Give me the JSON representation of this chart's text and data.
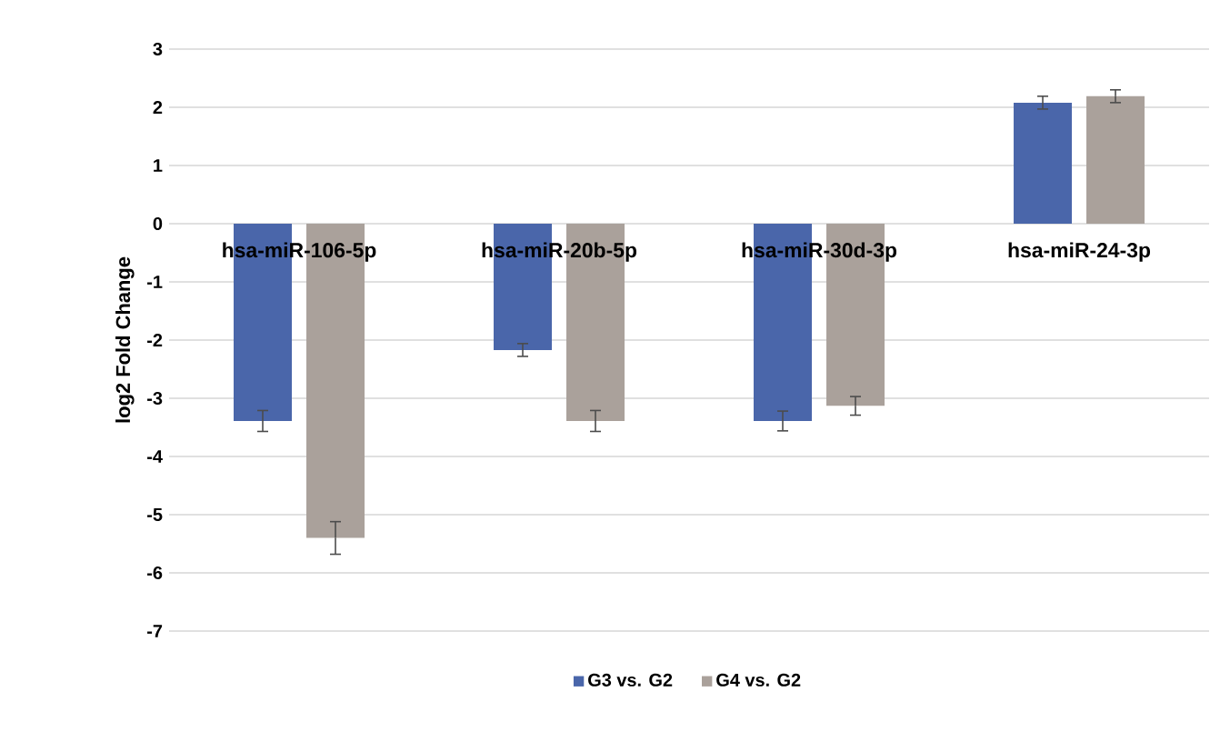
{
  "chart_data": {
    "type": "bar",
    "ylabel": "log2 Fold Change",
    "categories": [
      "hsa-miR-106-5p",
      "hsa-miR-20b-5p",
      "hsa-miR-30d-3p",
      "hsa-miR-24-3p"
    ],
    "series": [
      {
        "name": "G3 vs. G2",
        "color": "#4a66aa",
        "values": [
          -3.39,
          -2.17,
          -3.39,
          2.08
        ],
        "errors": [
          0.18,
          0.11,
          0.17,
          0.11
        ]
      },
      {
        "name": "G4 vs. G2",
        "color": "#aaa19b",
        "values": [
          -5.4,
          -3.39,
          -3.13,
          2.19
        ],
        "errors": [
          0.28,
          0.18,
          0.16,
          0.11
        ]
      }
    ],
    "ylim": [
      -7,
      3
    ],
    "yticks": [
      -7,
      -6,
      -5,
      -4,
      -3,
      -2,
      -1,
      0,
      1,
      2,
      3
    ],
    "grid": "y",
    "legend": "bottom"
  }
}
